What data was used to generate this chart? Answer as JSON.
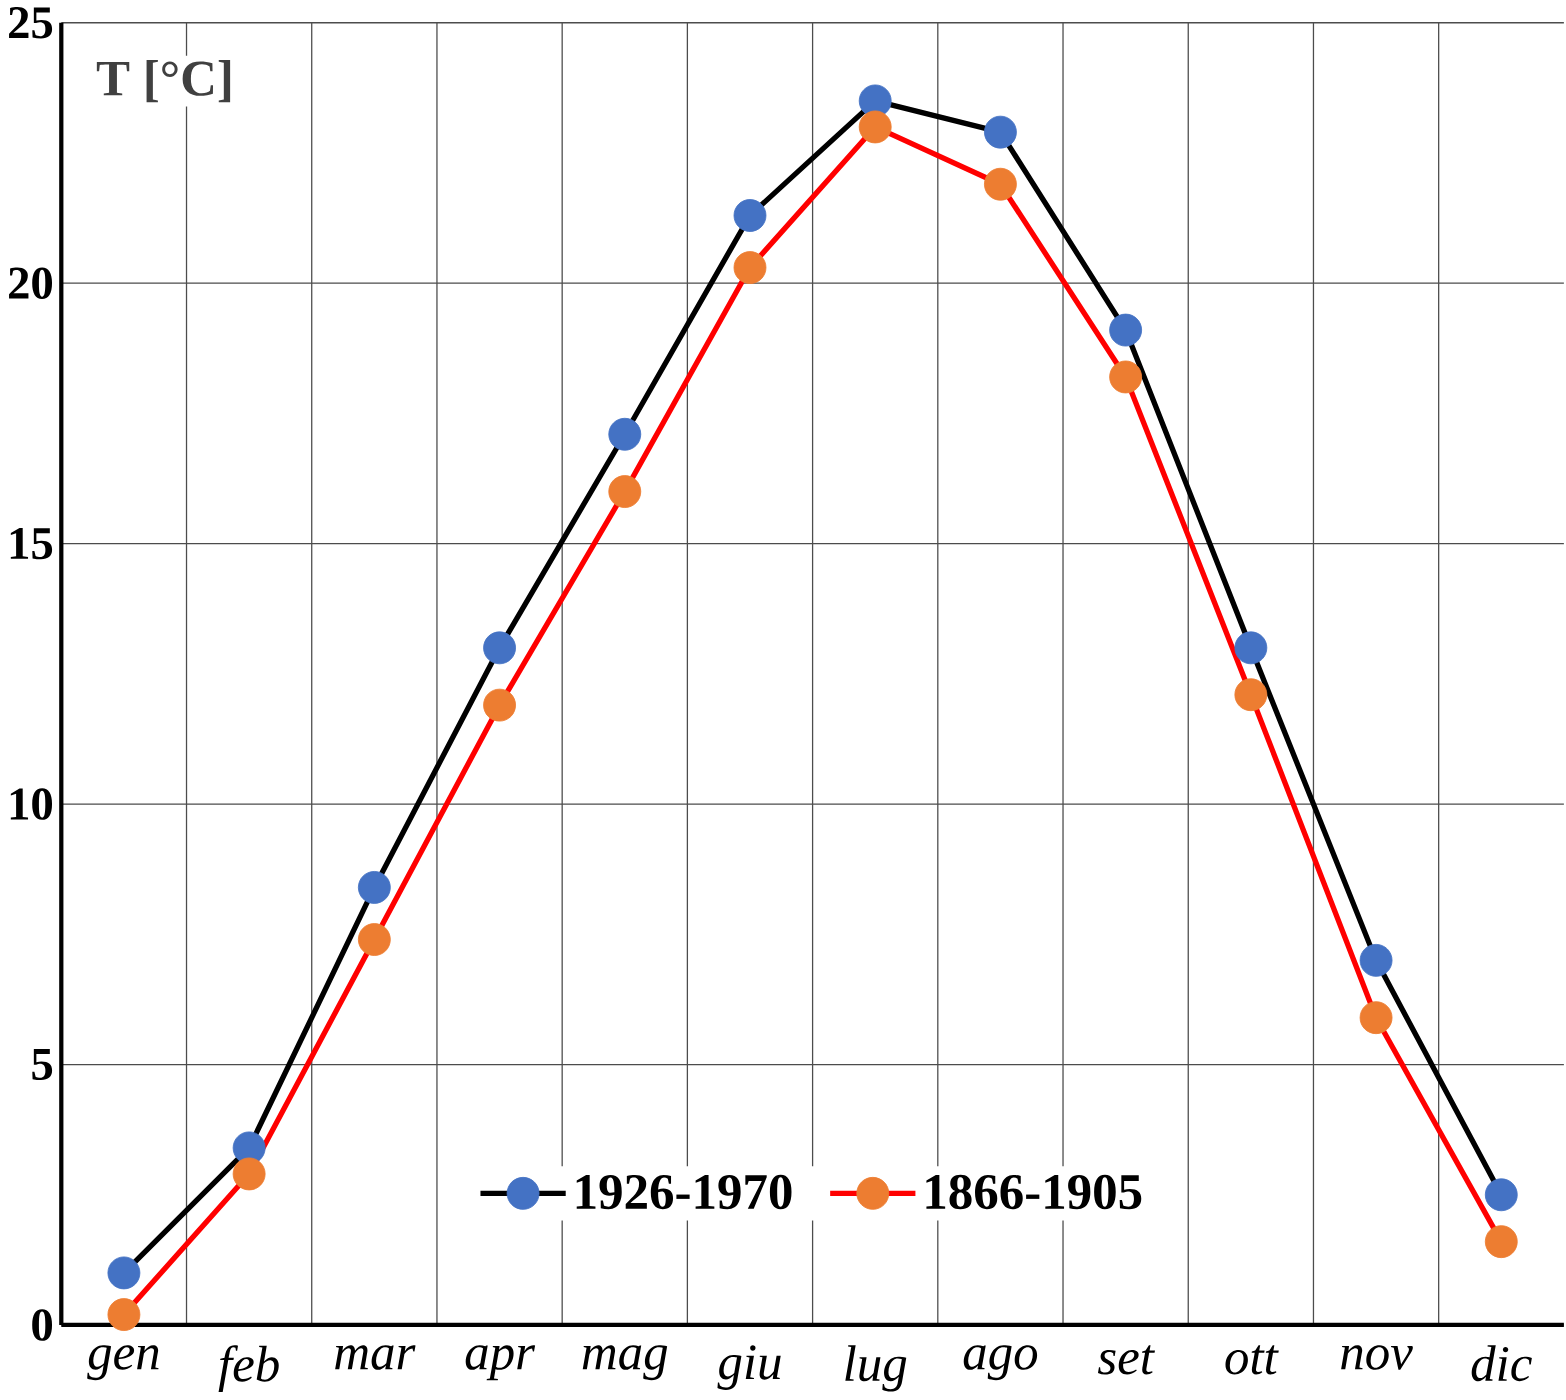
{
  "chart_data": {
    "type": "line",
    "ylabel": "T [°C]",
    "categories": [
      "gen",
      "feb",
      "mar",
      "apr",
      "mag",
      "giu",
      "lug",
      "ago",
      "set",
      "ott",
      "nov",
      "dic"
    ],
    "series": [
      {
        "name": "1926-1970",
        "color": "#000000",
        "colors": [
          "#4472c4",
          "#4472c4",
          "#4472c4",
          "#4472c4",
          "#4472c4",
          "#4472c4",
          "#4472c4",
          "#4472c4",
          "#4472c4",
          "#4472c4",
          "#4472c4",
          "#4472c4"
        ],
        "values": [
          1.0,
          3.4,
          8.4,
          13.0,
          17.1,
          21.3,
          23.5,
          22.9,
          19.1,
          13.0,
          7.0,
          2.5
        ]
      },
      {
        "name": "1866-1905",
        "color": "#ff0000",
        "colors": [
          "#ed7d31",
          "#ed7d31",
          "#ed7d31",
          "#ed7d31",
          "#ed7d31",
          "#ed7d31",
          "#ed7d31",
          "#ed7d31",
          "#ed7d31",
          "#ed7d31",
          "#ed7d31",
          "#ed7d31"
        ],
        "values": [
          0.2,
          2.9,
          7.4,
          11.9,
          16.0,
          20.3,
          23.0,
          21.9,
          18.2,
          12.1,
          5.9,
          1.6
        ]
      }
    ],
    "ylim": [
      0,
      25
    ],
    "yticks": [
      0,
      5,
      10,
      15,
      20,
      25
    ],
    "grid": true,
    "legend": "bottom",
    "marker": "circle",
    "line_style": "solid"
  }
}
